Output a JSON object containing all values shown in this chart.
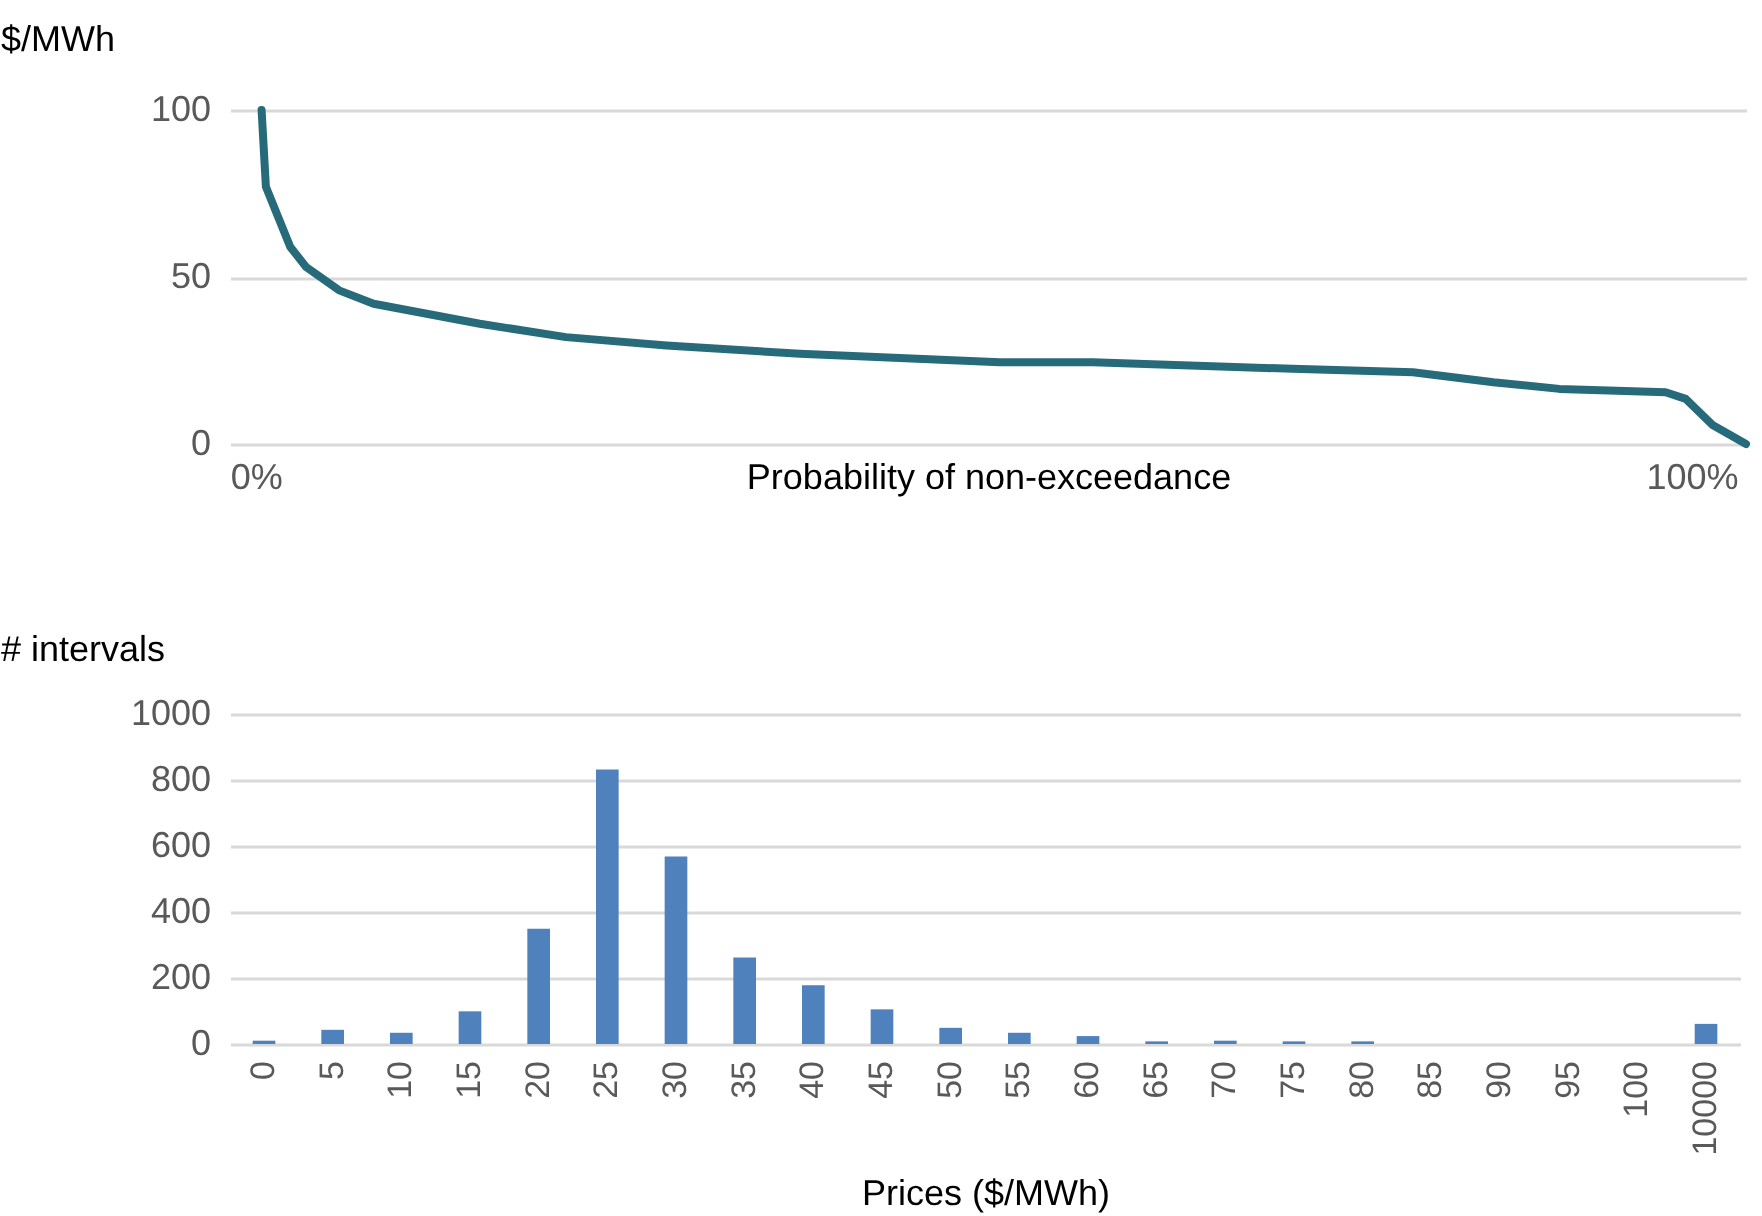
{
  "chart_data": [
    {
      "type": "line",
      "xlabel": "Probability of non-exceedance",
      "ylabel": "$/MWh",
      "x": [
        0.4,
        0.7,
        2.4,
        3.5,
        5.8,
        8.2,
        11.9,
        15.6,
        21.6,
        28.6,
        37.9,
        51.8,
        58.3,
        72.2,
        80.6,
        86.2,
        90.8,
        98.2,
        99.6,
        101.5,
        103.8
      ],
      "series": [
        {
          "color": "#276b7b",
          "values": [
            100,
            77,
            59,
            53,
            46,
            42,
            39,
            36,
            32,
            29.5,
            27,
            24.5,
            24.5,
            22.5,
            21.5,
            18.5,
            16.5,
            15.5,
            13.5,
            5.6,
            0
          ]
        }
      ],
      "xlim": [
        -1.8,
        103.8
      ],
      "xticks": [
        {
          "value": 0,
          "label": "0%"
        },
        {
          "value": 100,
          "label": "100%"
        }
      ],
      "ylim": [
        0,
        100
      ],
      "yticks": [
        0,
        50,
        100
      ],
      "grid": "y"
    },
    {
      "type": "bar",
      "xlabel": "Prices ($/MWh)",
      "ylabel": "# intervals",
      "categories": [
        "0",
        "5",
        "10",
        "15",
        "20",
        "25",
        "30",
        "35",
        "40",
        "45",
        "50",
        "55",
        "60",
        "65",
        "70",
        "75",
        "80",
        "85",
        "90",
        "95",
        "100",
        "10000"
      ],
      "series": [
        {
          "color": "#4f81bd",
          "values": [
            10,
            43,
            34,
            99,
            349,
            832,
            568,
            262,
            178,
            105,
            49,
            34,
            24,
            8,
            10,
            8,
            8,
            0,
            0,
            0,
            0,
            61
          ]
        }
      ],
      "ylim": [
        0,
        1000
      ],
      "yticks": [
        0,
        200,
        400,
        600,
        800,
        1000
      ],
      "grid": "y"
    }
  ]
}
